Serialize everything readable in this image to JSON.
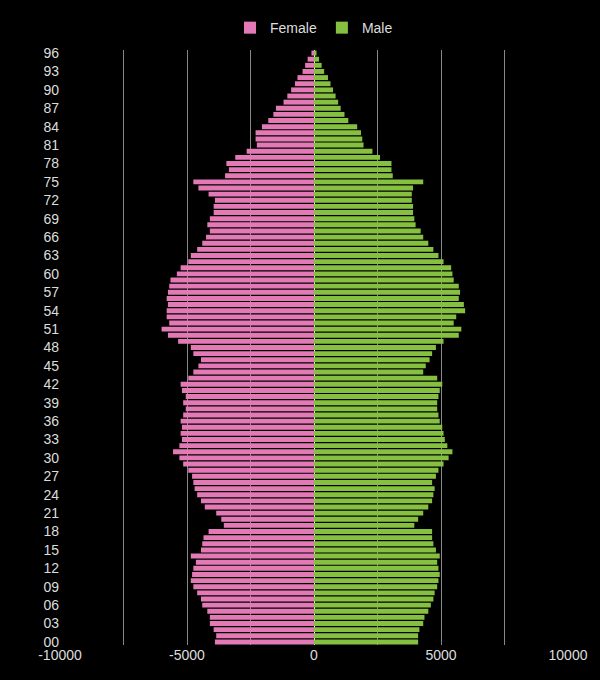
{
  "chart_data": {
    "type": "bar",
    "orientation": "horizontal",
    "grid": true,
    "legend": "top",
    "categories": [
      "00",
      null,
      null,
      "03",
      null,
      null,
      "06",
      null,
      null,
      "09",
      null,
      null,
      "12",
      null,
      null,
      "15",
      null,
      null,
      "18",
      null,
      null,
      "21",
      null,
      null,
      "24",
      null,
      null,
      "27",
      null,
      null,
      "30",
      null,
      null,
      "33",
      null,
      null,
      "36",
      null,
      null,
      "39",
      null,
      null,
      "42",
      null,
      null,
      "45",
      null,
      null,
      "48",
      null,
      null,
      "51",
      null,
      null,
      "54",
      null,
      null,
      "57",
      null,
      null,
      "60",
      null,
      null,
      "63",
      null,
      null,
      "66",
      null,
      null,
      "69",
      null,
      null,
      "72",
      null,
      null,
      "75",
      null,
      null,
      "78",
      null,
      null,
      "81",
      null,
      null,
      "84",
      null,
      null,
      "87",
      null,
      null,
      "90",
      null,
      null,
      "93",
      null,
      null,
      "96"
    ],
    "series": [
      {
        "name": "Female",
        "color": "#e47ab5",
        "values": [
          -3900,
          -3850,
          -3950,
          -4100,
          -4100,
          -4200,
          -4400,
          -4450,
          -4600,
          -4750,
          -4850,
          -4800,
          -4750,
          -4650,
          -4850,
          -4450,
          -4400,
          -4350,
          -4150,
          -3550,
          -3650,
          -3850,
          -4300,
          -4450,
          -4600,
          -4700,
          -4750,
          -4800,
          -4950,
          -5150,
          -5300,
          -5550,
          -5300,
          -5200,
          -5250,
          -5200,
          -5250,
          -5150,
          -5050,
          -5150,
          -5050,
          -5200,
          -5250,
          -4950,
          -4750,
          -4550,
          -4450,
          -4750,
          -4850,
          -5350,
          -5750,
          -6000,
          -5700,
          -5800,
          -5800,
          -5750,
          -5800,
          -5750,
          -5700,
          -5650,
          -5400,
          -5250,
          -4950,
          -4850,
          -4600,
          -4400,
          -4250,
          -4100,
          -4200,
          -4100,
          -3950,
          -3950,
          -3900,
          -4150,
          -4550,
          -4750,
          -3500,
          -3350,
          -3450,
          -3100,
          -2650,
          -2250,
          -2300,
          -2300,
          -2050,
          -1800,
          -1600,
          -1500,
          -1200,
          -1050,
          -900,
          -750,
          -650,
          -450,
          -350,
          -250,
          -100
        ]
      },
      {
        "name": "Male",
        "color": "#86c040",
        "values": [
          4100,
          4100,
          4150,
          4300,
          4350,
          4500,
          4600,
          4700,
          4750,
          4850,
          4900,
          4950,
          4900,
          4850,
          4950,
          4800,
          4700,
          4650,
          4650,
          3950,
          4100,
          4300,
          4500,
          4650,
          4700,
          4750,
          4650,
          4800,
          4900,
          5100,
          5300,
          5450,
          5250,
          5150,
          5100,
          5050,
          4950,
          4900,
          4850,
          4850,
          4900,
          4950,
          5050,
          4850,
          4300,
          4400,
          4550,
          4650,
          4800,
          5100,
          5700,
          5800,
          5500,
          5600,
          5950,
          5900,
          5700,
          5750,
          5700,
          5500,
          5450,
          5400,
          5100,
          4900,
          4700,
          4500,
          4300,
          4200,
          4000,
          3950,
          3900,
          3900,
          3850,
          3850,
          3900,
          4300,
          3100,
          3050,
          3050,
          2600,
          2300,
          1950,
          1900,
          1850,
          1700,
          1350,
          1200,
          1050,
          950,
          850,
          750,
          650,
          550,
          400,
          300,
          200,
          100
        ]
      }
    ],
    "xlim": [
      -10000,
      10000
    ],
    "xticks": [
      -10000,
      -5000,
      0,
      5000,
      10000
    ]
  }
}
